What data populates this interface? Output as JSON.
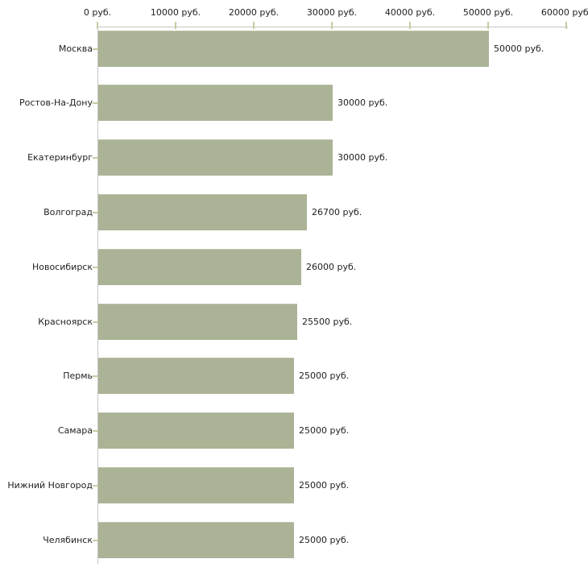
{
  "chart_data": {
    "type": "bar",
    "orientation": "horizontal",
    "title": "",
    "xlabel": "",
    "ylabel": "",
    "categories": [
      "Москва",
      "Ростов-На-Дону",
      "Екатеринбург",
      "Волгоград",
      "Новосибирск",
      "Красноярск",
      "Пермь",
      "Самара",
      "Нижний Новгород",
      "Челябинск"
    ],
    "values": [
      50000,
      30000,
      30000,
      26700,
      26000,
      25500,
      25000,
      25000,
      25000,
      25000
    ],
    "bar_value_labels": [
      "50000 руб.",
      "30000 руб.",
      "30000 руб.",
      "26700 руб.",
      "26000 руб.",
      "25500 руб.",
      "25000 руб.",
      "25000 руб.",
      "25000 руб.",
      "25000 руб."
    ],
    "x_axis": {
      "position": "top",
      "range": [
        0,
        60000
      ],
      "tick_values": [
        0,
        10000,
        20000,
        30000,
        40000,
        50000,
        60000
      ],
      "tick_labels": [
        "0 руб.",
        "10000 руб.",
        "20000 руб.",
        "30000 руб.",
        "40000 руб.",
        "50000 руб.",
        "60000 руб."
      ]
    },
    "grid": false,
    "legend": false,
    "colors": {
      "background": "#ffffff",
      "bar_fill": "#aab396",
      "bar_top_edge": "#bdc3a8",
      "axis_line": "#c6c6c6",
      "tick_mark": "#c9caa2",
      "label_text": "#222222"
    }
  }
}
